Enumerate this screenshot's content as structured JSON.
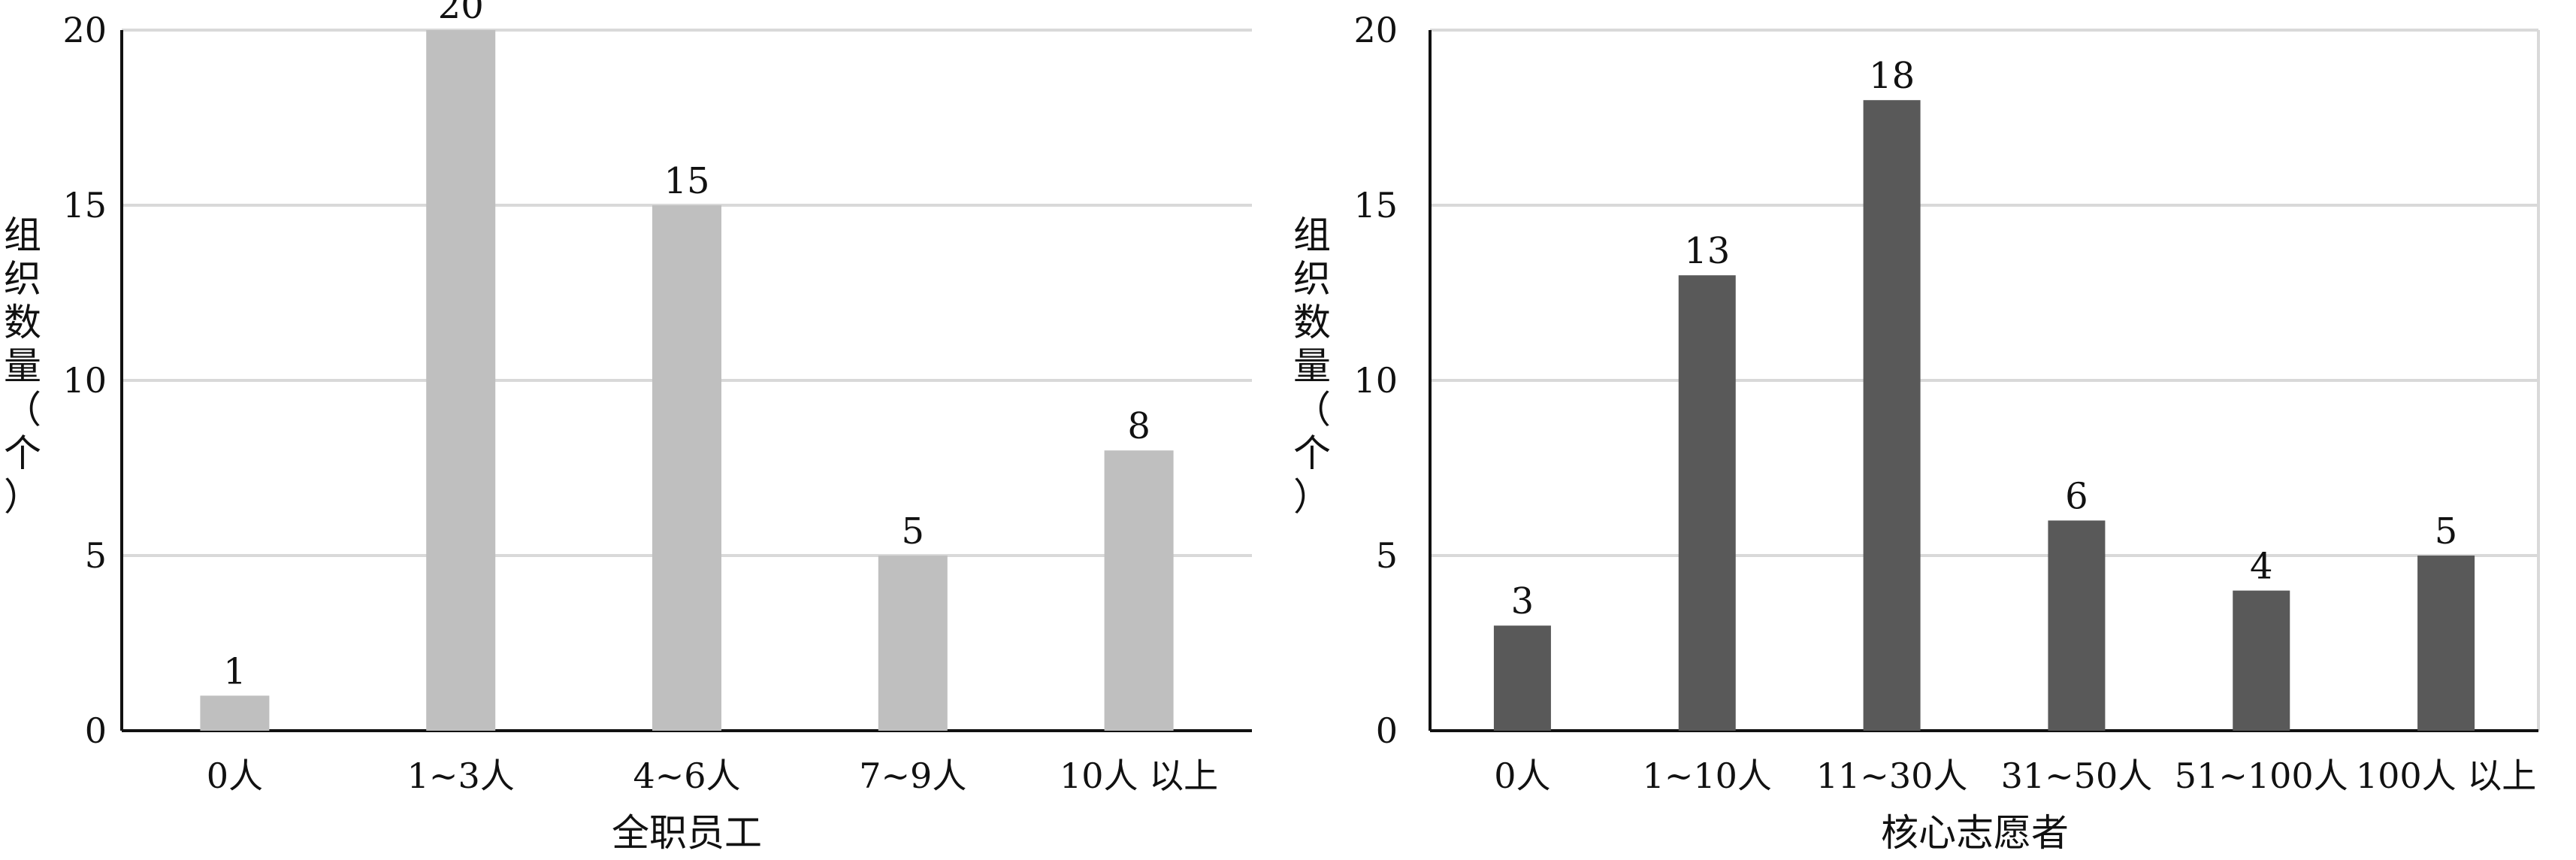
{
  "chart_data": [
    {
      "type": "bar",
      "title": "",
      "xlabel": "全职员工",
      "ylabel": [
        "组",
        "织",
        "数",
        "量",
        "（",
        "个",
        "）"
      ],
      "categories": [
        "0人",
        "1~3人",
        "4~6人",
        "7~9人",
        "10人 以上"
      ],
      "values": [
        1,
        20,
        15,
        5,
        8
      ],
      "ylim": [
        0,
        20
      ],
      "yticks": [
        "0",
        "5",
        "10",
        "15",
        "20"
      ],
      "grid": true,
      "bar_color": "#bfbfbf"
    },
    {
      "type": "bar",
      "title": "",
      "xlabel": "核心志愿者",
      "ylabel": [
        "组",
        "织",
        "数",
        "量",
        "（",
        "个",
        "）"
      ],
      "categories": [
        "0人",
        "1~10人",
        "11~30人",
        "31~50人",
        "51~100人",
        "100人 以上"
      ],
      "values": [
        3,
        13,
        18,
        6,
        4,
        5
      ],
      "ylim": [
        0,
        20
      ],
      "yticks": [
        "0",
        "5",
        "10",
        "15",
        "20"
      ],
      "grid": true,
      "bar_color": "#595959"
    }
  ]
}
